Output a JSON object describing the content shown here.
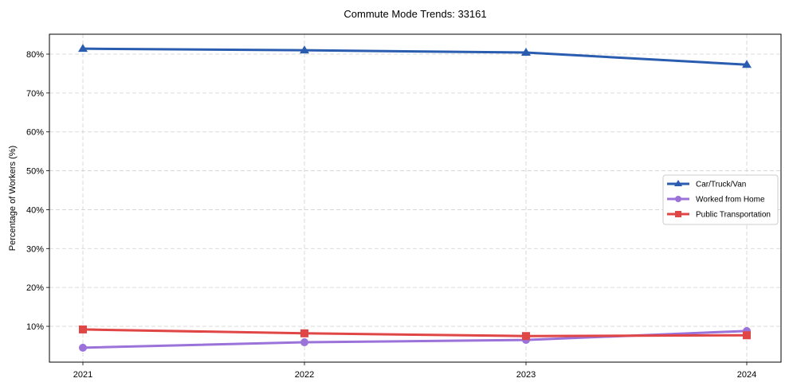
{
  "chart_data": {
    "type": "line",
    "title": "Commute Mode Trends: 33161",
    "xlabel": "",
    "ylabel": "Percentage of Workers (%)",
    "categories": [
      "2021",
      "2022",
      "2023",
      "2024"
    ],
    "yticks": [
      "10%",
      "20%",
      "30%",
      "40%",
      "50%",
      "60%",
      "70%",
      "80%"
    ],
    "ytick_values": [
      10,
      20,
      30,
      40,
      50,
      60,
      70,
      80
    ],
    "ylim": [
      0.6,
      85.1
    ],
    "grid": true,
    "legend_position": "center right",
    "series": [
      {
        "name": "Car/Truck/Van",
        "values": [
          81.4,
          81.0,
          80.4,
          77.3
        ],
        "color": "#2a5db0",
        "marker": "triangle"
      },
      {
        "name": "Worked from Home",
        "values": [
          4.5,
          5.9,
          6.5,
          8.8
        ],
        "color": "#9b72d9",
        "marker": "circle"
      },
      {
        "name": "Public Transportation",
        "values": [
          9.2,
          8.2,
          7.5,
          7.7
        ],
        "color": "#e04646",
        "marker": "square"
      }
    ]
  }
}
